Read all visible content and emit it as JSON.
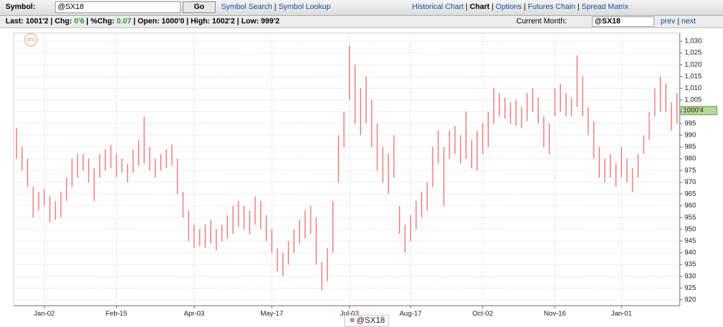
{
  "header": {
    "symbol_label": "Symbol:",
    "symbol": "@SX18",
    "go": "Go",
    "links": [
      "Symbol Search",
      "Symbol Lookup"
    ],
    "nav": [
      "Historical Chart",
      "Chart",
      "Options",
      "Futures Chain",
      "Spread Matrix"
    ]
  },
  "quote": {
    "items": [
      {
        "label": "Last:",
        "value": "1001'2"
      },
      {
        "label": "Chg:",
        "value": "0'6"
      },
      {
        "label": "%Chg:",
        "value": "0.07"
      },
      {
        "label": "Open:",
        "value": "1000'0"
      },
      {
        "label": "High:",
        "value": "1002'2"
      },
      {
        "label": "Low:",
        "value": "999'2"
      }
    ],
    "current_month_label": "Current Month:",
    "current_month": "@SX18",
    "prev": "prev",
    "next": "next"
  },
  "chart_data": {
    "type": "ohlc",
    "logo": "dtn",
    "color": "#f08080",
    "grid": true,
    "series": [
      {
        "name": "@SX18",
        "color": "#f08080",
        "high": [
          993,
          985,
          980,
          968,
          966,
          967,
          964,
          962,
          966,
          972,
          980,
          982,
          982,
          980,
          976,
          982,
          984,
          986,
          982,
          980,
          978,
          984,
          988,
          998,
          985,
          980,
          982,
          984,
          986,
          980,
          966,
          958,
          952,
          950,
          952,
          954,
          950,
          952,
          956,
          960,
          962,
          960,
          958,
          964,
          962,
          956,
          950,
          942,
          940,
          945,
          950,
          954,
          958,
          960,
          955,
          936,
          942,
          962,
          990,
          1000,
          1028,
          1020,
          1010,
          1015,
          1005,
          995,
          985,
          982,
          990,
          960,
          952,
          956,
          962,
          966,
          970,
          985,
          992,
          985,
          992,
          994,
          990,
          1000,
          988,
          992,
          995,
          1000,
          1010,
          1008,
          1006,
          1004,
          1005,
          1002,
          1008,
          1010,
          1006,
          998,
          995,
          1010,
          1012,
          1008,
          1006,
          1024,
          1015,
          1002,
          996,
          985,
          980,
          982,
          978,
          985,
          980,
          976,
          982,
          990,
          1000,
          1010,
          1015,
          1012,
          1004,
          1008
        ],
        "low": [
          980,
          975,
          968,
          955,
          958,
          960,
          953,
          954,
          955,
          962,
          968,
          972,
          975,
          970,
          962,
          972,
          975,
          976,
          972,
          974,
          970,
          974,
          977,
          978,
          975,
          972,
          975,
          976,
          977,
          965,
          955,
          945,
          942,
          943,
          942,
          944,
          941,
          945,
          946,
          948,
          951,
          950,
          948,
          952,
          950,
          945,
          940,
          932,
          930,
          935,
          940,
          944,
          946,
          948,
          935,
          924,
          928,
          940,
          970,
          985,
          1005,
          995,
          990,
          995,
          985,
          975,
          970,
          965,
          972,
          948,
          940,
          945,
          950,
          955,
          958,
          968,
          978,
          960,
          980,
          982,
          978,
          980,
          976,
          975,
          982,
          985,
          995,
          998,
          997,
          995,
          994,
          993,
          996,
          1000,
          995,
          985,
          982,
          998,
          1000,
          998,
          998,
          1002,
          998,
          990,
          980,
          972,
          970,
          972,
          968,
          972,
          970,
          966,
          972,
          982,
          988,
          998,
          1000,
          1000,
          992,
          995
        ]
      }
    ],
    "last_price": {
      "value": 1000.5,
      "label": "1000'4"
    },
    "xlim": [
      -0.5,
      119.5
    ],
    "xticks": [
      {
        "value": 5,
        "label": "Jan-02"
      },
      {
        "value": 18,
        "label": "Feb-15"
      },
      {
        "value": 32,
        "label": "Apr-03"
      },
      {
        "value": 46,
        "label": "May-17"
      },
      {
        "value": 60,
        "label": "Jul-03"
      },
      {
        "value": 71,
        "label": "Aug-17"
      },
      {
        "value": 84,
        "label": "Oct-02"
      },
      {
        "value": 97,
        "label": "Nov-16"
      },
      {
        "value": 109,
        "label": "Jan-01"
      }
    ],
    "ylim": [
      917.5,
      1033.5
    ],
    "yticks": [
      920,
      925,
      930,
      935,
      940,
      945,
      950,
      955,
      960,
      965,
      970,
      975,
      980,
      985,
      990,
      995,
      {
        "value": 1000,
        "label": "1,000"
      },
      {
        "value": 1005,
        "label": "1,005"
      },
      {
        "value": 1010,
        "label": "1,010"
      },
      {
        "value": 1015,
        "label": "1,015"
      },
      {
        "value": 1020,
        "label": "1,020"
      },
      {
        "value": 1025,
        "label": "1,025"
      },
      {
        "value": 1030,
        "label": "1,030"
      }
    ]
  }
}
